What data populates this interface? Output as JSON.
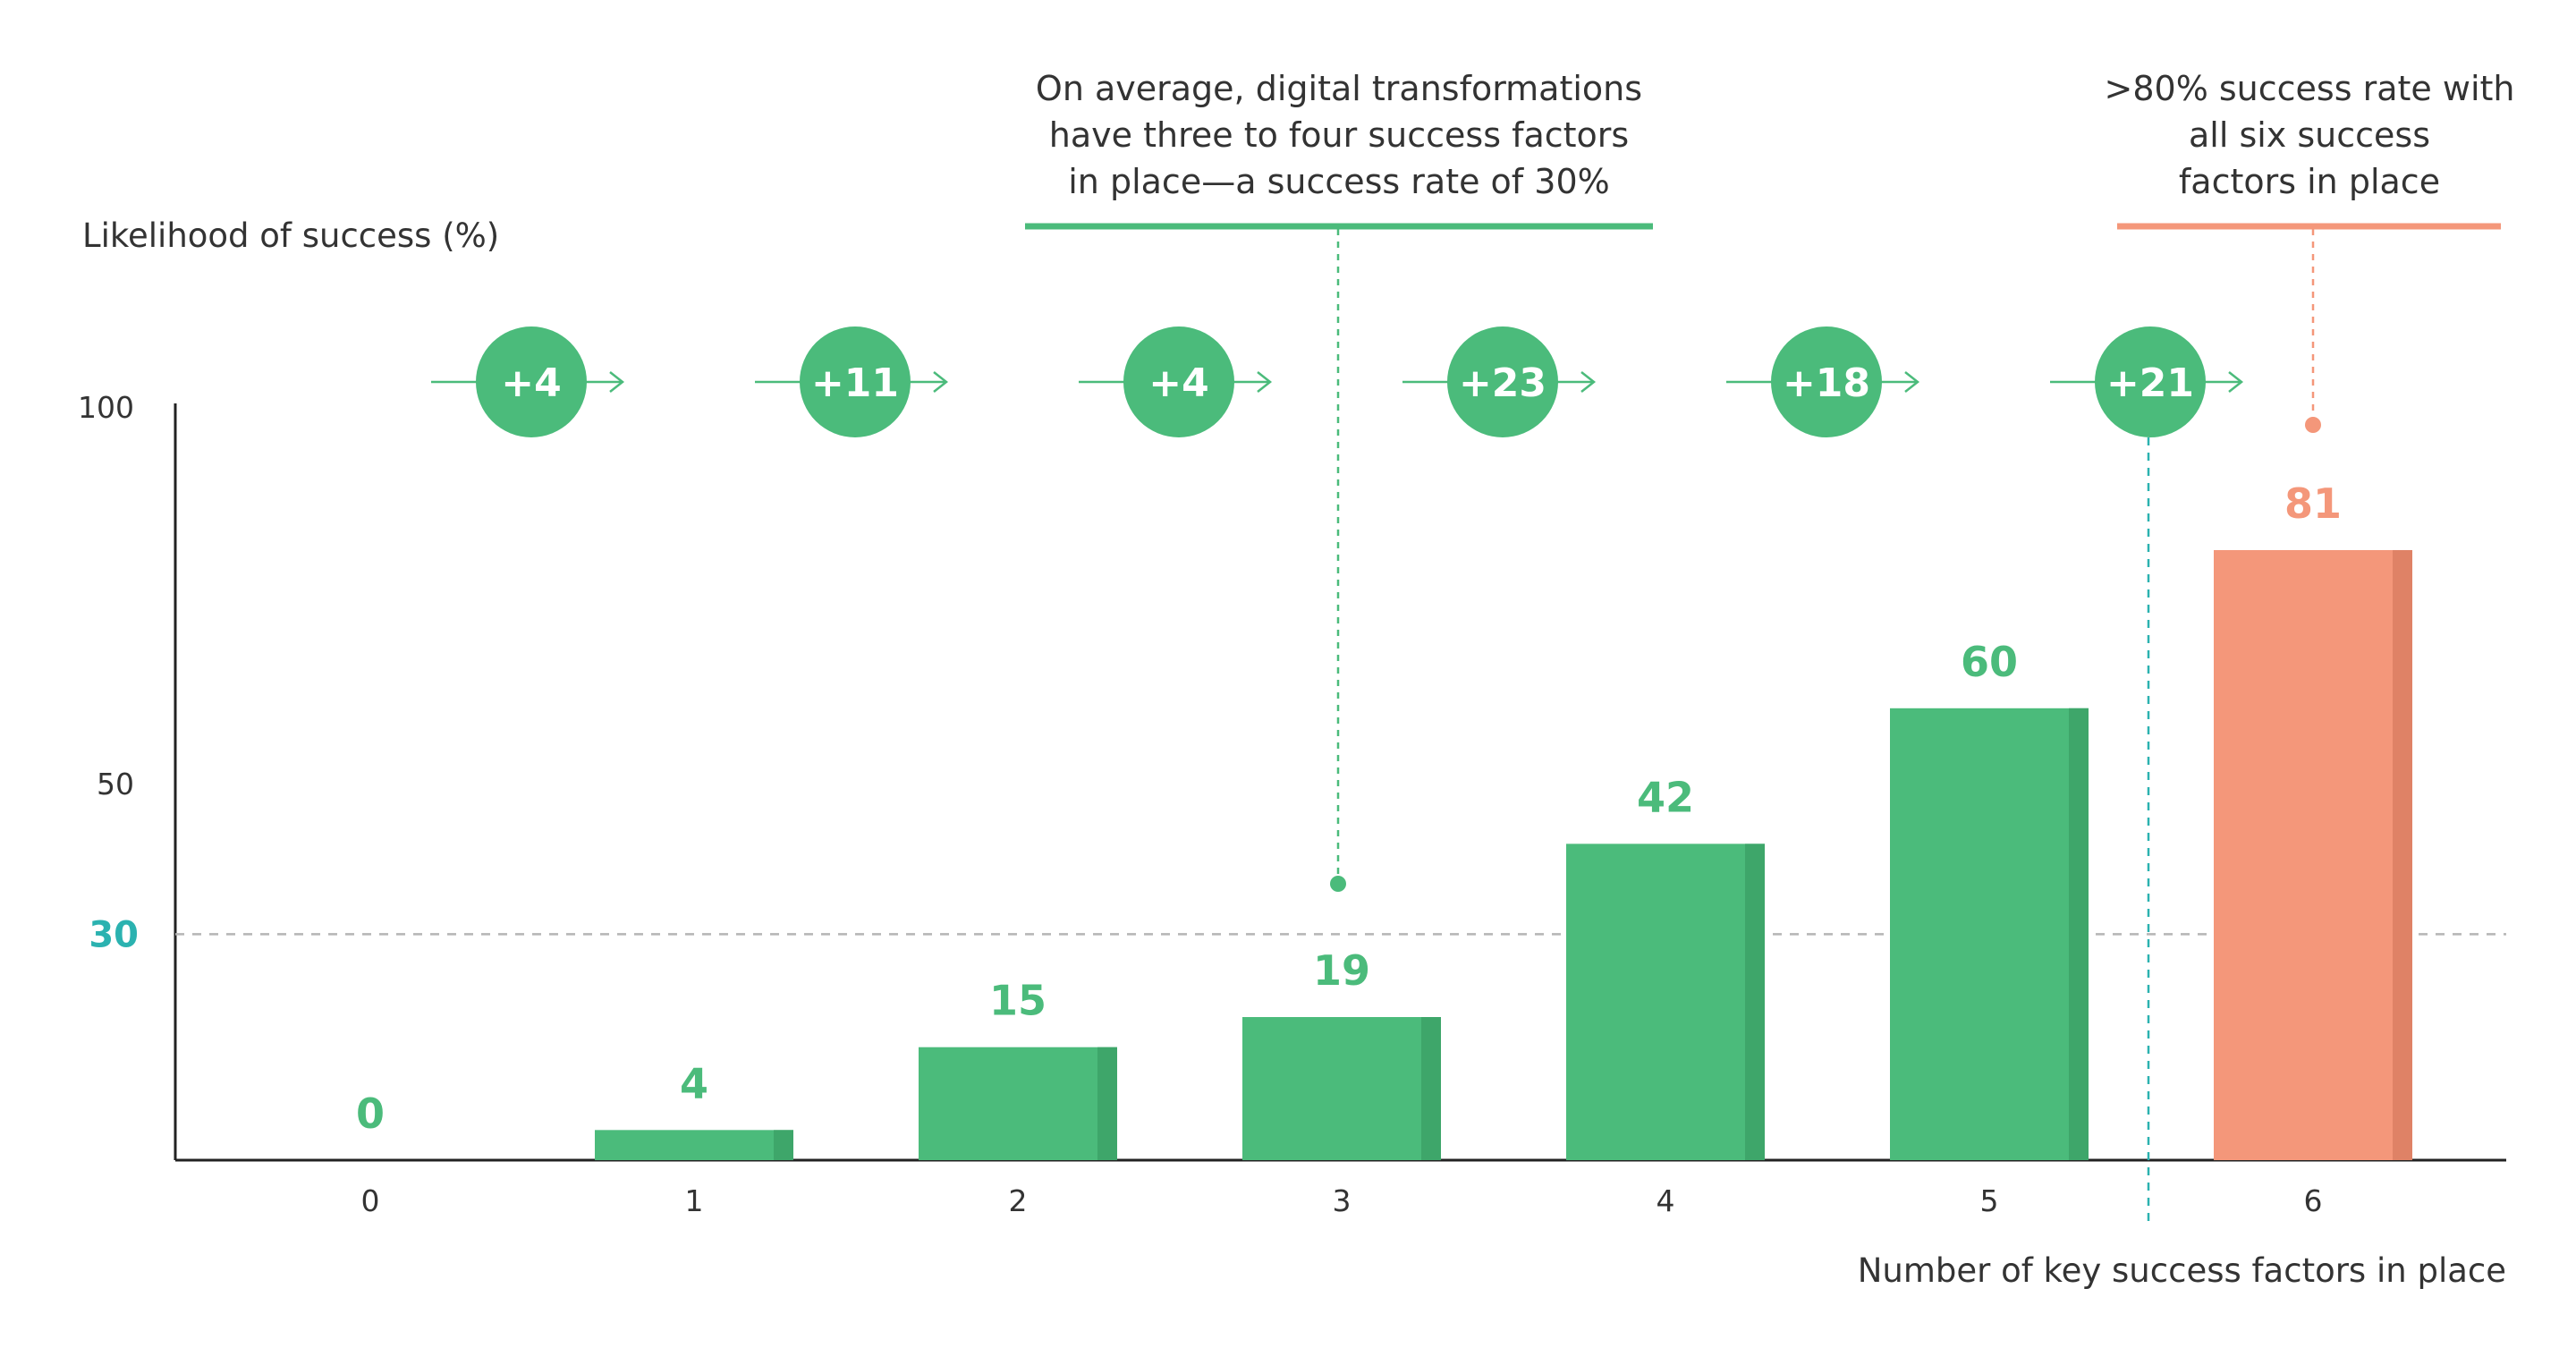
{
  "chart_data": {
    "type": "bar",
    "categories": [
      "0",
      "1",
      "2",
      "3",
      "4",
      "5",
      "6"
    ],
    "values": [
      0,
      4,
      15,
      19,
      42,
      60,
      81
    ],
    "xlabel": "Number of key success factors in place",
    "ylabel": "Likelihood of success (%)",
    "ylim": [
      0,
      100
    ],
    "yticks": [
      "100",
      "50"
    ],
    "reference_line": {
      "value": 30,
      "label": "30"
    },
    "increments": [
      "+4",
      "+11",
      "+4",
      "+23",
      "+18",
      "+21"
    ],
    "annotations": [
      {
        "lines": [
          "On average, digital transformations",
          "have three to four success factors",
          "in place—a success rate of 30%"
        ],
        "color": "#4bbb7b"
      },
      {
        "lines": [
          ">80% success rate with",
          "all six success",
          "factors in place"
        ],
        "color": "#f4977a"
      }
    ],
    "colors": {
      "bar": "#4bbb7b",
      "bar_shade": "#3ea66a",
      "highlight": "#f4977a",
      "highlight_shade": "#df8266",
      "reference": "#2bb2b0",
      "label_green": "#4bbb7b",
      "label_orange": "#f4977a"
    },
    "grid": false,
    "legend": "none"
  }
}
